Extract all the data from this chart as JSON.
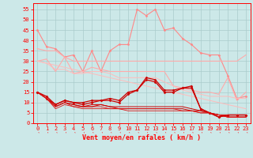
{
  "title": "",
  "xlabel": "Vent moyen/en rafales ( km/h )",
  "ylabel": "",
  "bg_color": "#cce8e8",
  "grid_color": "#aacccc",
  "x": [
    0,
    1,
    2,
    3,
    4,
    5,
    6,
    7,
    8,
    9,
    10,
    11,
    12,
    13,
    14,
    15,
    16,
    17,
    18,
    19,
    20,
    21,
    22,
    23
  ],
  "series": [
    {
      "name": "rafales_peak",
      "color": "#ff8888",
      "linewidth": 0.8,
      "marker": "D",
      "markersize": 1.5,
      "data": [
        45,
        37,
        36,
        32,
        33,
        25,
        35,
        25,
        35,
        38,
        38,
        55,
        52,
        55,
        45,
        46,
        41,
        38,
        34,
        33,
        33,
        23,
        12,
        13
      ]
    },
    {
      "name": "rafales_trend1",
      "color": "#ffaaaa",
      "linewidth": 0.8,
      "marker": null,
      "markersize": 0,
      "data": [
        36,
        35,
        35,
        32,
        30,
        30,
        30,
        30,
        30,
        30,
        30,
        30,
        30,
        30,
        30,
        30,
        30,
        30,
        30,
        30,
        30,
        30,
        30,
        33
      ]
    },
    {
      "name": "rafales_trend2",
      "color": "#ffaaaa",
      "linewidth": 0.8,
      "marker": null,
      "markersize": 0,
      "data": [
        30,
        31,
        25,
        32,
        24,
        25,
        27,
        26,
        25,
        25,
        25,
        25,
        25,
        25,
        25,
        18,
        17,
        16,
        15,
        15,
        14,
        22,
        11,
        15
      ]
    },
    {
      "name": "rafales_trend3",
      "color": "#ffbbbb",
      "linewidth": 0.7,
      "marker": null,
      "markersize": 0,
      "data": [
        30,
        29,
        26,
        26,
        24,
        24,
        25,
        25,
        24,
        22,
        22,
        22,
        22,
        22,
        20,
        18,
        16,
        15,
        14,
        13,
        13,
        13,
        12,
        12
      ]
    },
    {
      "name": "moyen_trend_diag",
      "color": "#ffbbbb",
      "linewidth": 0.7,
      "marker": null,
      "markersize": 0,
      "data": [
        30,
        29,
        28,
        27,
        26,
        25,
        24,
        23,
        22,
        21,
        20,
        19,
        18,
        17,
        16,
        15,
        14,
        13,
        12,
        11,
        10,
        9,
        8,
        7
      ]
    },
    {
      "name": "vent_rouge1",
      "color": "#cc0000",
      "linewidth": 0.9,
      "marker": "D",
      "markersize": 1.5,
      "data": [
        15,
        13,
        9,
        11,
        10,
        10,
        11,
        11,
        12,
        11,
        15,
        16,
        22,
        21,
        16,
        16,
        17,
        18,
        7,
        5,
        3,
        4,
        4,
        4
      ]
    },
    {
      "name": "vent_rouge2",
      "color": "#cc0000",
      "linewidth": 0.9,
      "marker": "D",
      "markersize": 1.5,
      "data": [
        15,
        12,
        9,
        11,
        10,
        9,
        10,
        11,
        11,
        10,
        14,
        16,
        21,
        20,
        15,
        15,
        17,
        17,
        7,
        5,
        3,
        4,
        4,
        4
      ]
    },
    {
      "name": "vent_rouge3",
      "color": "#cc0000",
      "linewidth": 0.7,
      "marker": null,
      "markersize": 0,
      "data": [
        15,
        12,
        8,
        10,
        9,
        8,
        9,
        9,
        8,
        8,
        8,
        8,
        8,
        8,
        8,
        8,
        8,
        7,
        6,
        5,
        4,
        4,
        4,
        4
      ]
    },
    {
      "name": "vent_rouge4",
      "color": "#cc0000",
      "linewidth": 0.7,
      "marker": null,
      "markersize": 0,
      "data": [
        15,
        12,
        8,
        10,
        9,
        8,
        8,
        9,
        8,
        7,
        7,
        7,
        7,
        7,
        7,
        7,
        7,
        6,
        6,
        5,
        4,
        3,
        3,
        3
      ]
    },
    {
      "name": "vent_rouge5",
      "color": "#dd1111",
      "linewidth": 0.6,
      "marker": null,
      "markersize": 0,
      "data": [
        15,
        12,
        8,
        10,
        8,
        8,
        8,
        8,
        7,
        7,
        7,
        7,
        7,
        7,
        7,
        7,
        6,
        6,
        5,
        5,
        4,
        3,
        3,
        3
      ]
    },
    {
      "name": "vent_rouge6",
      "color": "#dd1111",
      "linewidth": 0.6,
      "marker": null,
      "markersize": 0,
      "data": [
        15,
        12,
        7,
        9,
        8,
        7,
        7,
        7,
        7,
        7,
        6,
        6,
        6,
        6,
        6,
        6,
        6,
        6,
        5,
        5,
        4,
        3,
        3,
        3
      ]
    }
  ],
  "ylim": [
    0,
    58
  ],
  "yticks": [
    0,
    5,
    10,
    15,
    20,
    25,
    30,
    35,
    40,
    45,
    50,
    55
  ],
  "xlim": [
    -0.5,
    23.5
  ],
  "tick_fontsize": 5.0,
  "xlabel_fontsize": 6.0
}
